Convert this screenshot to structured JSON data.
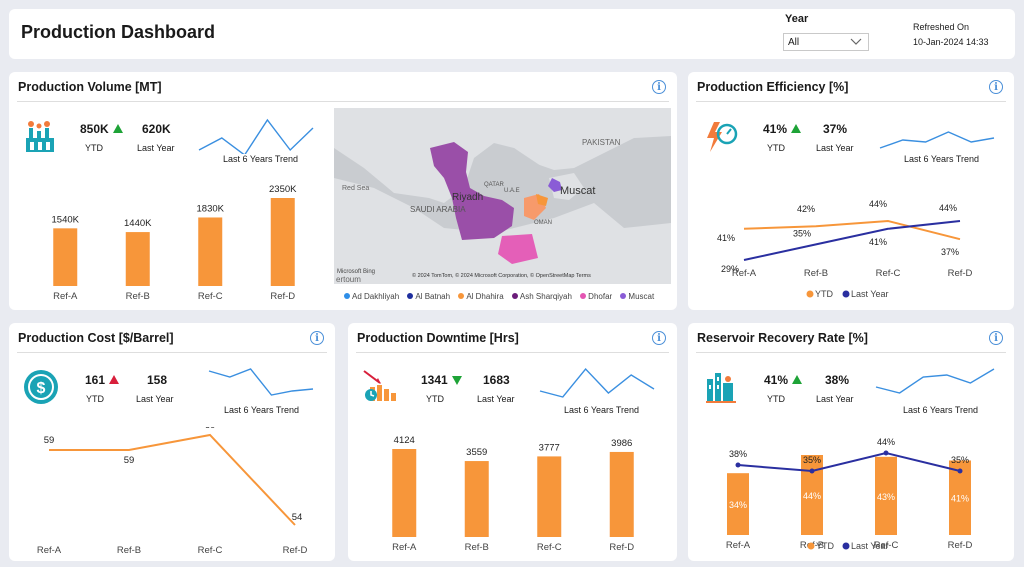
{
  "header": {
    "title": "Production Dashboard",
    "year_label": "Year",
    "year_value": "All",
    "refreshed_label": "Refreshed On",
    "refreshed_value": "10-Jan-2024 14:33"
  },
  "common": {
    "ytd": "YTD",
    "last_year": "Last Year",
    "trend": "Last 6 Years Trend",
    "info": "i"
  },
  "volume": {
    "title": "Production Volume [MT]",
    "ytd_value": "850K",
    "ly_value": "620K",
    "chart_data": {
      "type": "bar",
      "categories": [
        "Ref-A",
        "Ref-B",
        "Ref-C",
        "Ref-D"
      ],
      "values": [
        1540,
        1440,
        1830,
        2350
      ],
      "labels": [
        "1540K",
        "1440K",
        "1830K",
        "2350K"
      ],
      "color": "#f7963a"
    },
    "trend": [
      40,
      28,
      45,
      10,
      40,
      18
    ]
  },
  "map": {
    "labels": {
      "pakistan": "PAKISTAN",
      "riyadh": "Riyadh",
      "saudi": "SAUDI ARABIA",
      "muscat": "Muscat",
      "uae": "U.A.E",
      "qatar": "QATAR",
      "oman": "OMAN",
      "red_sea": "Red Sea",
      "attribution": "© 2024 TomTom, © 2024 Microsoft Corporation, © OpenStreetMap  Terms",
      "bing": "Microsoft Bing",
      "partial": "ertoum"
    },
    "legend": [
      {
        "name": "Ad Dakhliyah",
        "color": "#2e8ee8"
      },
      {
        "name": "Al Batnah",
        "color": "#1f2f9e"
      },
      {
        "name": "Al Dhahira",
        "color": "#f7963a"
      },
      {
        "name": "Ash Sharqiyah",
        "color": "#6b1d7a"
      },
      {
        "name": "Dhofar",
        "color": "#e455b2"
      },
      {
        "name": "Muscat",
        "color": "#8a5cd6"
      }
    ]
  },
  "efficiency": {
    "title": "Production Efficiency [%]",
    "ytd_value": "41%",
    "ly_value": "37%",
    "chart_data": {
      "type": "line",
      "categories": [
        "Ref-A",
        "Ref-B",
        "Ref-C",
        "Ref-D"
      ],
      "series": [
        {
          "name": "YTD",
          "values": [
            41,
            42,
            44,
            37
          ],
          "labels": [
            "41%",
            "42%",
            "44%",
            "37%"
          ],
          "color": "#f7963a"
        },
        {
          "name": "Last Year",
          "values": [
            29,
            35,
            41,
            44
          ],
          "labels": [
            "29%",
            "35%",
            "41%",
            "44%"
          ],
          "color": "#2a2fa0"
        }
      ],
      "legend": [
        "YTD",
        "Last Year"
      ]
    },
    "trend": [
      38,
      30,
      32,
      22,
      32,
      28
    ]
  },
  "cost": {
    "title": "Production Cost [$/Barrel]",
    "ytd_value": "161",
    "ly_value": "158",
    "chart_data": {
      "type": "line",
      "categories": [
        "Ref-A",
        "Ref-B",
        "Ref-C",
        "Ref-D"
      ],
      "values": [
        59,
        59,
        60,
        54
      ],
      "labels": [
        "59",
        "59",
        "60",
        "54"
      ],
      "color": "#f7963a"
    },
    "trend": [
      10,
      16,
      8,
      34,
      30,
      28
    ]
  },
  "downtime": {
    "title": "Production Downtime [Hrs]",
    "ytd_value": "1341",
    "ly_value": "1683",
    "chart_data": {
      "type": "bar",
      "categories": [
        "Ref-A",
        "Ref-B",
        "Ref-C",
        "Ref-D"
      ],
      "values": [
        4124,
        3559,
        3777,
        3986
      ],
      "labels": [
        "4124",
        "3559",
        "3777",
        "3986"
      ],
      "color": "#f7963a"
    },
    "trend": [
      30,
      36,
      8,
      32,
      14,
      28
    ]
  },
  "recovery": {
    "title": "Reservoir Recovery Rate [%]",
    "ytd_value": "41%",
    "ly_value": "38%",
    "chart_data": {
      "type": "bar",
      "categories": [
        "Ref-A",
        "Ref-B",
        "Ref-C",
        "Ref-D"
      ],
      "series": [
        {
          "name": "YTD",
          "values": [
            34,
            44,
            43,
            41
          ],
          "labels": [
            "34%",
            "44%",
            "43%",
            "41%"
          ],
          "color": "#f7963a"
        },
        {
          "name": "Last Year",
          "values": [
            38,
            35,
            44,
            35
          ],
          "labels": [
            "38%",
            "35%",
            "44%",
            "35%"
          ],
          "color": "#2a2fa0"
        }
      ],
      "legend": [
        "YTD",
        "Last Year"
      ]
    },
    "trend": [
      26,
      32,
      16,
      14,
      22,
      8
    ]
  }
}
